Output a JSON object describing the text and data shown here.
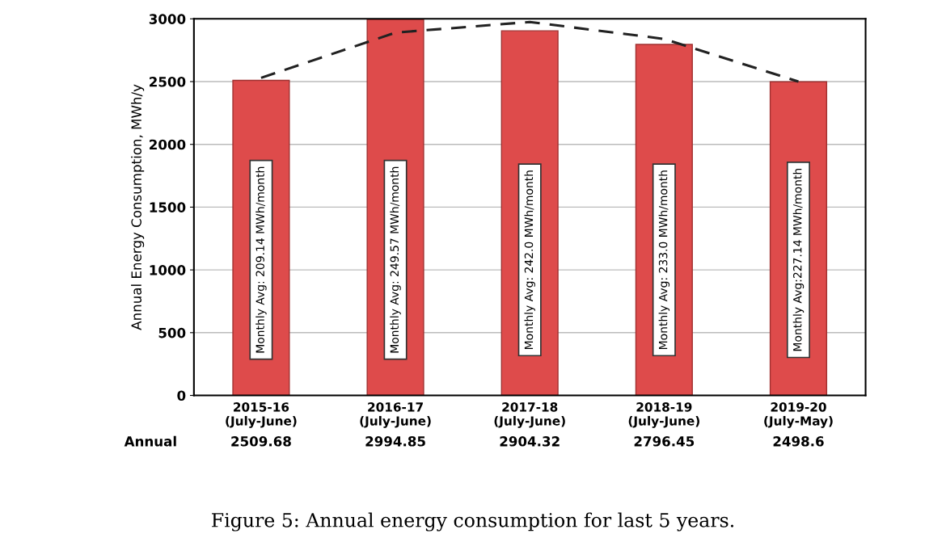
{
  "chart_data": {
    "type": "bar",
    "ylabel": "Annual Energy Consumption, MWh/y",
    "categories": [
      "2015-16\n(July-June)",
      "2016-17\n(July-June)",
      "2017-18\n(July-June)",
      "2018-19\n(July-June)",
      "2019-20\n(July-May)"
    ],
    "values": [
      2509.68,
      2994.85,
      2904.32,
      2796.45,
      2498.6
    ],
    "value_labels": [
      "2509.68",
      "2994.85",
      "2904.32",
      "2796.45",
      "2498.6"
    ],
    "color": "#de4b4b",
    "series": [
      {
        "type": "line",
        "line_style": "dashed",
        "color": "#222222",
        "values": [
          2530,
          2890,
          2975,
          2840,
          2500
        ]
      }
    ],
    "ylim": [
      0,
      3000
    ],
    "yticks": [
      0,
      500,
      1000,
      1500,
      2000,
      2500,
      3000
    ],
    "grid": "y",
    "annotations": [
      "Monthly Avg: 209.14 MWh/month",
      "Monthly Avg: 249.57 MWh/month",
      "Monthly Avg: 242.0 MWh/month",
      "Monthly Avg: 233.0 MWh/month",
      "Monthly Avg:227.14 MWh/month",
      "Annual",
      "Figure 5: Annual energy consumption for last 5 years."
    ]
  }
}
